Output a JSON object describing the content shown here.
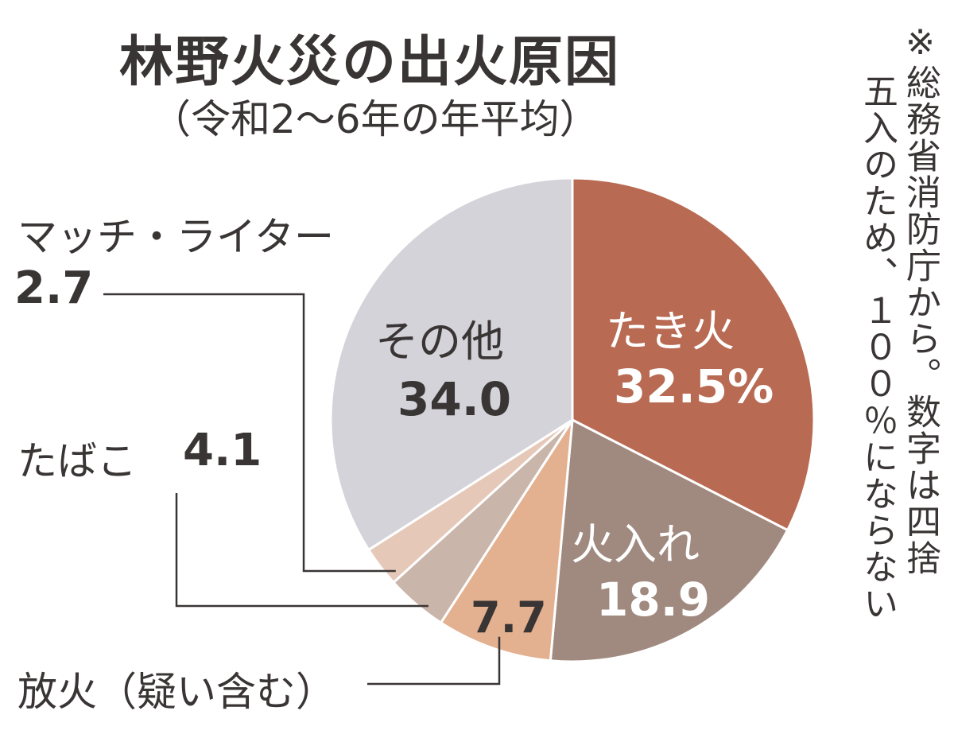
{
  "chart_data": {
    "type": "pie",
    "title": "林野火災の出火原因",
    "subtitle": "（令和2〜6年の年平均）",
    "unit": "%",
    "slices": [
      {
        "name": "たき火",
        "label": "たき火",
        "value": 32.5,
        "value_label": "32.5%",
        "color": "#b86a52"
      },
      {
        "name": "火入れ",
        "label": "火入れ",
        "value": 18.9,
        "value_label": "18.9",
        "color": "#a08a80"
      },
      {
        "name": "放火（疑い含む）",
        "label": "放火（疑い含む）",
        "value": 7.7,
        "value_label": "7.7",
        "color": "#e3b090"
      },
      {
        "name": "たばこ",
        "label": "たばこ",
        "value": 4.1,
        "value_label": "4.1",
        "color": "#c9b5aa"
      },
      {
        "name": "マッチ・ライター",
        "label": "マッチ・ライター",
        "value": 2.7,
        "value_label": "2.7",
        "color": "#e5c8b8"
      },
      {
        "name": "その他",
        "label": "その他",
        "value": 34.0,
        "value_label": "34.0",
        "color": "#d3d3d9"
      }
    ],
    "note_lines": [
      "※総務省消防庁から。数字は四捨",
      "五入のため、１００％にならない"
    ]
  }
}
